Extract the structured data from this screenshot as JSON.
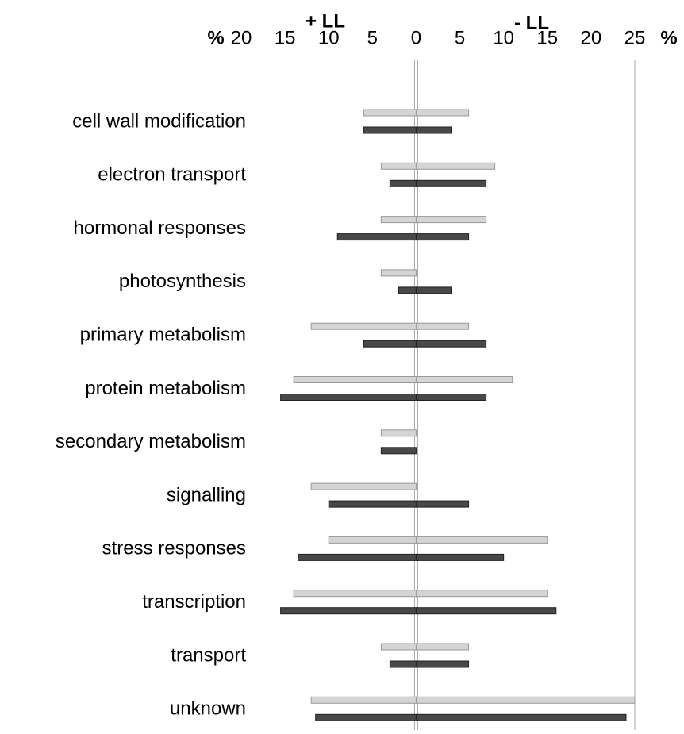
{
  "chart_data": {
    "type": "diverging-bar",
    "left_header": "+ LL",
    "right_header": "- LL",
    "x_unit": "%",
    "categories": [
      "cell wall modification",
      "electron transport",
      "hormonal responses",
      "photosynthesis",
      "primary metabolism",
      "protein metabolism",
      "secondary  metabolism",
      "signalling",
      "stress responses",
      "transcription",
      "transport",
      "unknown"
    ],
    "series": [
      {
        "color": "#d4d4d4",
        "left": [
          -6,
          -4,
          -4,
          -4,
          -12,
          -14,
          -4,
          -12,
          -10,
          -14,
          -4,
          -12
        ],
        "right": [
          6,
          9,
          8,
          0,
          6,
          11,
          0,
          0,
          15,
          15,
          6,
          25
        ]
      },
      {
        "color": "#484848",
        "left": [
          -6,
          -3,
          -9,
          -2,
          -6,
          -15.5,
          -4,
          -10,
          -13.5,
          -15.5,
          -3,
          -11.5
        ],
        "right": [
          4,
          8,
          6,
          4,
          8,
          8,
          0,
          6,
          10,
          16,
          6,
          24
        ]
      }
    ],
    "xlim": [
      -20,
      25
    ],
    "xticks": [
      {
        "value": -20,
        "label": "20"
      },
      {
        "value": -15,
        "label": "15"
      },
      {
        "value": -10,
        "label": "10"
      },
      {
        "value": -5,
        "label": "5"
      },
      0,
      5,
      10,
      15,
      20,
      25
    ]
  }
}
